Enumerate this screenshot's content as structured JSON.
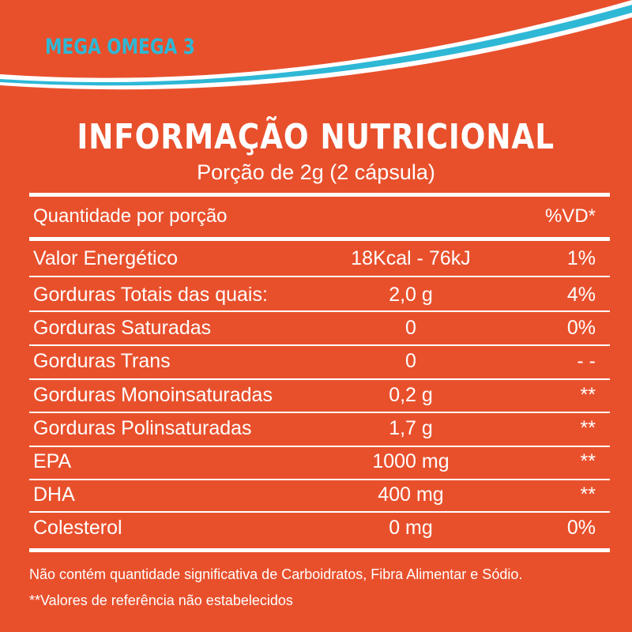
{
  "brand": "MEGA OMEGA 3",
  "title": "INFORMAÇÃO NUTRICIONAL",
  "subtitle": "Porção de 2g (2 cápsula)",
  "table": {
    "header": {
      "label": "Quantidade por porção",
      "vd": "%VD*"
    },
    "rows": [
      {
        "name": "Valor Energético",
        "amount": "18Kcal - 76kJ",
        "vd": "1%"
      },
      {
        "name": "Gorduras Totais das quais:",
        "amount": "2,0 g",
        "vd": "4%"
      },
      {
        "name": "Gorduras Saturadas",
        "amount": "0",
        "vd": "0%"
      },
      {
        "name": "Gorduras Trans",
        "amount": "0",
        "vd": "- -"
      },
      {
        "name": "Gorduras Monoinsaturadas",
        "amount": "0,2 g",
        "vd": "**"
      },
      {
        "name": "Gorduras Polinsaturadas",
        "amount": "1,7 g",
        "vd": "**"
      },
      {
        "name": "EPA",
        "amount": "1000 mg",
        "vd": "**"
      },
      {
        "name": "DHA",
        "amount": "400 mg",
        "vd": "**"
      },
      {
        "name": "Colesterol",
        "amount": "0 mg",
        "vd": "0%"
      }
    ]
  },
  "notes": {
    "line1": "Não contém quantidade significativa de Carboidratos, Fibra Alimentar e Sódio.",
    "line2": "**Valores de referência não estabelecidos"
  },
  "colors": {
    "background": "#e8502c",
    "accent_wave": "#2eb8d6",
    "text": "#ffffff"
  }
}
